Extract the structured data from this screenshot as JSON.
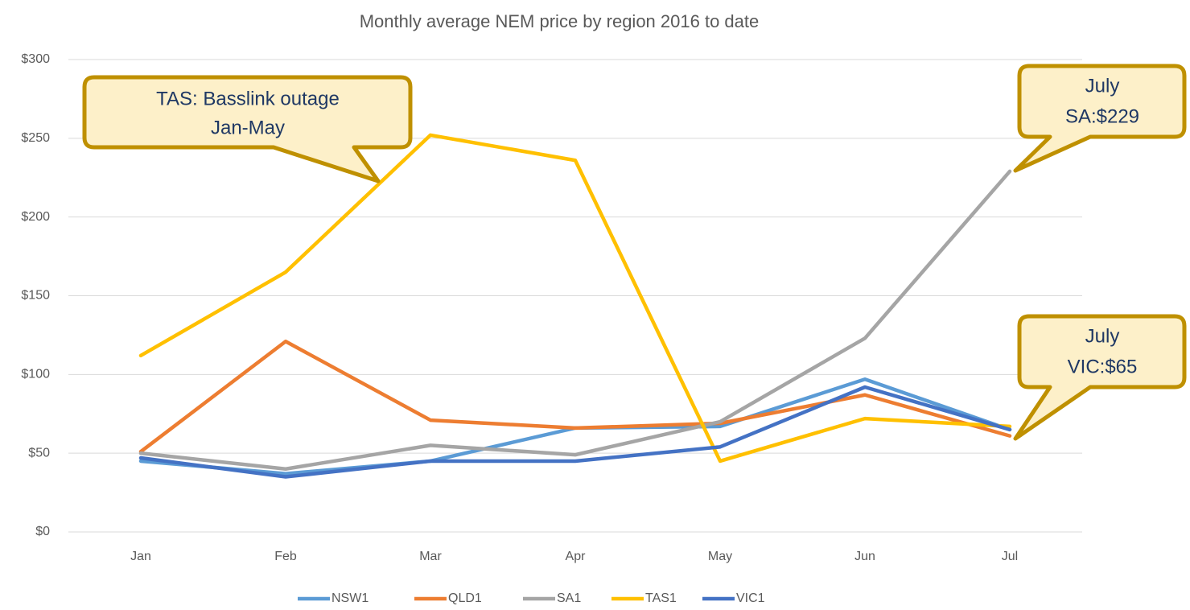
{
  "chart_data": {
    "type": "line",
    "title": "Monthly average NEM price by region 2016 to date",
    "categories": [
      "Jan",
      "Feb",
      "Mar",
      "Apr",
      "May",
      "Jun",
      "Jul"
    ],
    "series": [
      {
        "name": "NSW1",
        "color": "#5b9bd5",
        "values": [
          45,
          37,
          45,
          66,
          67,
          97,
          65
        ]
      },
      {
        "name": "QLD1",
        "color": "#ed7d31",
        "values": [
          51,
          121,
          71,
          66,
          69,
          87,
          61
        ]
      },
      {
        "name": "SA1",
        "color": "#a5a5a5",
        "values": [
          50,
          40,
          55,
          49,
          70,
          123,
          229
        ]
      },
      {
        "name": "TAS1",
        "color": "#ffc000",
        "values": [
          112,
          165,
          252,
          236,
          45,
          72,
          67
        ]
      },
      {
        "name": "VIC1",
        "color": "#4472c4",
        "values": [
          47,
          35,
          45,
          45,
          54,
          92,
          65
        ]
      }
    ],
    "ylim": [
      0,
      300
    ],
    "yticks": [
      {
        "value": 0,
        "label": "$0"
      },
      {
        "value": 50,
        "label": "$50"
      },
      {
        "value": 100,
        "label": "$100"
      },
      {
        "value": 150,
        "label": "$150"
      },
      {
        "value": 200,
        "label": "$200"
      },
      {
        "value": 250,
        "label": "$250"
      },
      {
        "value": 300,
        "label": "$300"
      }
    ],
    "grid": true,
    "legend": "bottom",
    "annotations": [
      {
        "lines": [
          "TAS: Basslink outage",
          "Jan-May"
        ]
      },
      {
        "lines": [
          "July",
          "SA:$229"
        ]
      },
      {
        "lines": [
          "July",
          "VIC:$65"
        ]
      }
    ]
  }
}
